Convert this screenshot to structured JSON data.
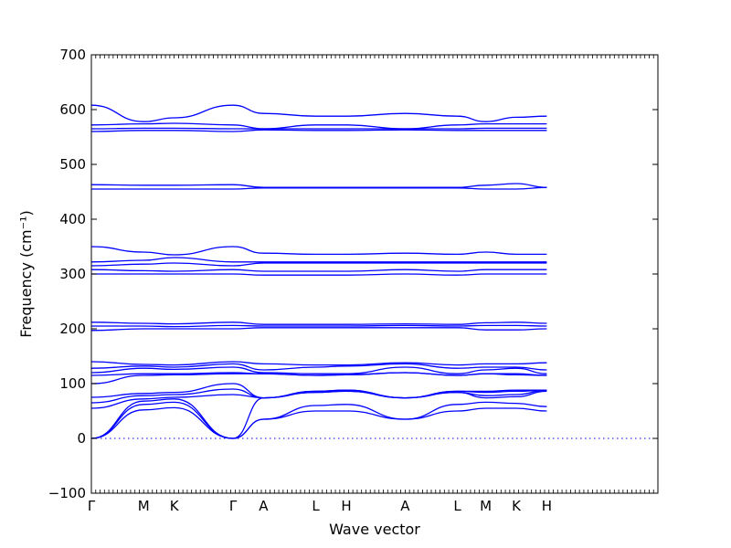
{
  "chart_data": {
    "type": "line",
    "title": "",
    "xlabel": "Wave vector",
    "ylabel": "Frequency (cm⁻¹)",
    "ylim": [
      -100,
      700
    ],
    "yticks": [
      -100,
      0,
      100,
      200,
      300,
      400,
      500,
      600,
      700
    ],
    "xlim": [
      0,
      13
    ],
    "high_symmetry_points": [
      {
        "label": "Γ",
        "x": 0
      },
      {
        "label": "M",
        "x": 1.2
      },
      {
        "label": "K",
        "x": 1.9
      },
      {
        "label": "Γ",
        "x": 3.25
      },
      {
        "label": "A",
        "x": 3.95
      },
      {
        "label": "L",
        "x": 5.15
      },
      {
        "label": "H",
        "x": 5.85
      },
      {
        "label": "A",
        "x": 7.2
      },
      {
        "label": "L",
        "x": 8.4
      },
      {
        "label": "M",
        "x": 9.05
      },
      {
        "label": "K",
        "x": 9.75
      },
      {
        "label": "H",
        "x": 10.45
      }
    ],
    "zero_reference_line": 0,
    "grid": false,
    "legend": "none",
    "line_color": "#0000ff",
    "series": [
      {
        "x": [
          0,
          1.2,
          1.9,
          3.25,
          3.95,
          5.15,
          5.85,
          7.2,
          8.4,
          9.05,
          9.75,
          10.45
        ],
        "values": [
          0,
          52,
          56,
          0,
          35,
          50,
          50,
          35,
          50,
          55,
          55,
          50
        ]
      },
      {
        "x": [
          0,
          1.2,
          1.9,
          3.25,
          3.95,
          5.15,
          5.85,
          7.2,
          8.4,
          9.05,
          9.75,
          10.45
        ],
        "values": [
          0,
          62,
          66,
          0,
          35,
          60,
          62,
          35,
          62,
          66,
          64,
          58
        ]
      },
      {
        "x": [
          0,
          1.2,
          1.9,
          3.25,
          3.95,
          5.15,
          5.85,
          7.2,
          8.4,
          9.05,
          9.75,
          10.45
        ],
        "values": [
          0,
          68,
          72,
          0,
          74,
          84,
          86,
          74,
          84,
          74,
          76,
          86
        ]
      },
      {
        "x": [
          0,
          1.2,
          1.9,
          3.25,
          3.95,
          5.15,
          5.85,
          7.2,
          8.4,
          9.05,
          9.75,
          10.45
        ],
        "values": [
          55,
          72,
          75,
          80,
          74,
          84,
          86,
          74,
          84,
          78,
          80,
          88
        ]
      },
      {
        "x": [
          0,
          1.2,
          1.9,
          3.25,
          3.95,
          5.15,
          5.85,
          7.2,
          8.4,
          9.05,
          9.75,
          10.45
        ],
        "values": [
          65,
          78,
          80,
          90,
          74,
          86,
          88,
          74,
          86,
          84,
          86,
          88
        ]
      },
      {
        "x": [
          0,
          1.2,
          1.9,
          3.25,
          3.95,
          5.15,
          5.85,
          7.2,
          8.4,
          9.05,
          9.75,
          10.45
        ],
        "values": [
          75,
          82,
          84,
          100,
          74,
          86,
          88,
          74,
          86,
          86,
          88,
          88
        ]
      },
      {
        "x": [
          0,
          1.2,
          1.9,
          3.25,
          3.95,
          5.15,
          5.85,
          7.2,
          8.4,
          9.05,
          9.75,
          10.45
        ],
        "values": [
          100,
          115,
          116,
          118,
          118,
          115,
          116,
          120,
          115,
          118,
          118,
          115
        ]
      },
      {
        "x": [
          0,
          1.2,
          1.9,
          3.25,
          3.95,
          5.15,
          5.85,
          7.2,
          8.4,
          9.05,
          9.75,
          10.45
        ],
        "values": [
          115,
          118,
          118,
          120,
          118,
          115,
          116,
          120,
          115,
          118,
          116,
          115
        ]
      },
      {
        "x": [
          0,
          1.2,
          1.9,
          3.25,
          3.95,
          5.15,
          5.85,
          7.2,
          8.4,
          9.05,
          9.75,
          10.45
        ],
        "values": [
          120,
          128,
          126,
          130,
          120,
          118,
          118,
          130,
          118,
          125,
          128,
          118
        ]
      },
      {
        "x": [
          0,
          1.2,
          1.9,
          3.25,
          3.95,
          5.15,
          5.85,
          7.2,
          8.4,
          9.05,
          9.75,
          10.45
        ],
        "values": [
          128,
          132,
          130,
          136,
          125,
          130,
          132,
          136,
          128,
          130,
          130,
          125
        ]
      },
      {
        "x": [
          0,
          1.2,
          1.9,
          3.25,
          3.95,
          5.15,
          5.85,
          7.2,
          8.4,
          9.05,
          9.75,
          10.45
        ],
        "values": [
          140,
          135,
          134,
          140,
          136,
          134,
          134,
          138,
          134,
          136,
          136,
          138
        ]
      },
      {
        "x": [
          0,
          1.2,
          1.9,
          3.25,
          3.95,
          5.15,
          5.85,
          7.2,
          8.4,
          9.05,
          9.75,
          10.45
        ],
        "values": [
          197,
          200,
          200,
          200,
          202,
          202,
          202,
          202,
          202,
          198,
          198,
          200
        ]
      },
      {
        "x": [
          0,
          1.2,
          1.9,
          3.25,
          3.95,
          5.15,
          5.85,
          7.2,
          8.4,
          9.05,
          9.75,
          10.45
        ],
        "values": [
          205,
          205,
          204,
          206,
          205,
          205,
          205,
          206,
          205,
          206,
          206,
          205
        ]
      },
      {
        "x": [
          0,
          1.2,
          1.9,
          3.25,
          3.95,
          5.15,
          5.85,
          7.2,
          8.4,
          9.05,
          9.75,
          10.45
        ],
        "values": [
          212,
          210,
          209,
          212,
          208,
          208,
          208,
          209,
          208,
          211,
          212,
          210
        ]
      },
      {
        "x": [
          0,
          1.2,
          1.9,
          3.25,
          3.95,
          5.15,
          5.85,
          7.2,
          8.4,
          9.05,
          9.75,
          10.45
        ],
        "values": [
          300,
          300,
          300,
          300,
          298,
          298,
          298,
          300,
          298,
          300,
          300,
          300
        ]
      },
      {
        "x": [
          0,
          1.2,
          1.9,
          3.25,
          3.95,
          5.15,
          5.85,
          7.2,
          8.4,
          9.05,
          9.75,
          10.45
        ],
        "values": [
          308,
          306,
          305,
          308,
          305,
          305,
          305,
          308,
          305,
          308,
          308,
          308
        ]
      },
      {
        "x": [
          0,
          1.2,
          1.9,
          3.25,
          3.95,
          5.15,
          5.85,
          7.2,
          8.4,
          9.05,
          9.75,
          10.45
        ],
        "values": [
          315,
          318,
          320,
          315,
          320,
          320,
          320,
          320,
          320,
          320,
          320,
          320
        ]
      },
      {
        "x": [
          0,
          1.2,
          1.9,
          3.25,
          3.95,
          5.15,
          5.85,
          7.2,
          8.4,
          9.05,
          9.75,
          10.45
        ],
        "values": [
          322,
          325,
          330,
          322,
          322,
          322,
          322,
          322,
          322,
          322,
          322,
          322
        ]
      },
      {
        "x": [
          0,
          1.2,
          1.9,
          3.25,
          3.95,
          5.15,
          5.85,
          7.2,
          8.4,
          9.05,
          9.75,
          10.45
        ],
        "values": [
          350,
          340,
          335,
          350,
          338,
          336,
          336,
          338,
          336,
          340,
          336,
          336
        ]
      },
      {
        "x": [
          0,
          1.2,
          1.9,
          3.25,
          3.95,
          5.15,
          5.85,
          7.2,
          8.4,
          9.05,
          9.75,
          10.45
        ],
        "values": [
          455,
          455,
          455,
          455,
          457,
          457,
          457,
          457,
          457,
          455,
          455,
          458
        ]
      },
      {
        "x": [
          0,
          1.2,
          1.9,
          3.25,
          3.95,
          5.15,
          5.85,
          7.2,
          8.4,
          9.05,
          9.75,
          10.45
        ],
        "values": [
          463,
          462,
          462,
          463,
          458,
          458,
          458,
          458,
          458,
          462,
          465,
          458
        ]
      },
      {
        "x": [
          0,
          1.2,
          1.9,
          3.25,
          3.95,
          5.15,
          5.85,
          7.2,
          8.4,
          9.05,
          9.75,
          10.45
        ],
        "values": [
          560,
          562,
          562,
          560,
          563,
          562,
          562,
          563,
          562,
          562,
          562,
          562
        ]
      },
      {
        "x": [
          0,
          1.2,
          1.9,
          3.25,
          3.95,
          5.15,
          5.85,
          7.2,
          8.4,
          9.05,
          9.75,
          10.45
        ],
        "values": [
          565,
          566,
          566,
          565,
          565,
          565,
          565,
          565,
          565,
          566,
          566,
          566
        ]
      },
      {
        "x": [
          0,
          1.2,
          1.9,
          3.25,
          3.95,
          5.15,
          5.85,
          7.2,
          8.4,
          9.05,
          9.75,
          10.45
        ],
        "values": [
          572,
          574,
          575,
          572,
          565,
          572,
          572,
          565,
          572,
          574,
          574,
          574
        ]
      },
      {
        "x": [
          0,
          1.2,
          1.9,
          3.25,
          3.95,
          5.15,
          5.85,
          7.2,
          8.4,
          9.05,
          9.75,
          10.45
        ],
        "values": [
          608,
          578,
          585,
          608,
          593,
          588,
          588,
          593,
          588,
          578,
          586,
          588
        ]
      }
    ]
  }
}
